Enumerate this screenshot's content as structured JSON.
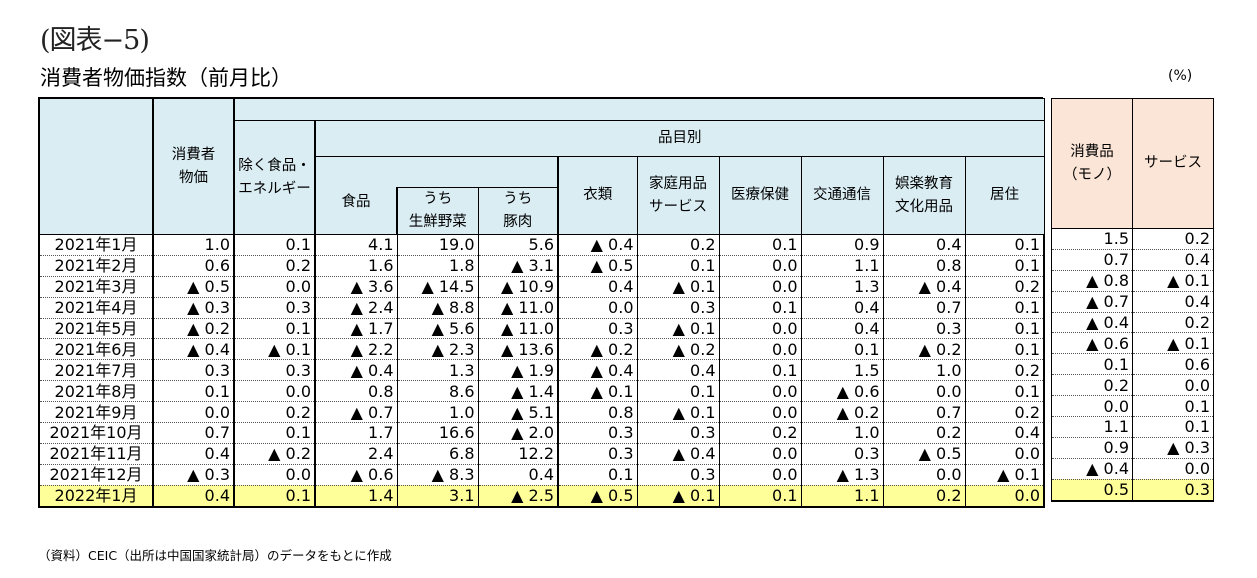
{
  "figure_label": "(図表−5)",
  "title": "消費者物価指数（前月比）",
  "unit": "(%)",
  "headers": {
    "group_label": "品目別",
    "cpi": [
      "消費者",
      "物価"
    ],
    "core": [
      "除く食品・",
      "エネルギー"
    ],
    "food": "食品",
    "vegetables": [
      "うち",
      "生鮮野菜"
    ],
    "pork": [
      "うち",
      "豚肉"
    ],
    "clothing": "衣類",
    "household": [
      "家庭用品",
      "サービス"
    ],
    "medical": "医療保健",
    "transport": "交通通信",
    "recreation": [
      "娯楽教育",
      "文化用品"
    ],
    "housing": "居住",
    "goods": [
      "消費品",
      "（モノ）"
    ],
    "services": "サービス"
  },
  "rows": [
    {
      "month": "2021年1月",
      "v": [
        "1.0",
        "0.1",
        "4.1",
        "19.0",
        "5.6",
        "▲ 0.4",
        "0.2",
        "0.1",
        "0.9",
        "0.4",
        "0.1"
      ],
      "r": [
        "1.5",
        "0.2"
      ]
    },
    {
      "month": "2021年2月",
      "v": [
        "0.6",
        "0.2",
        "1.6",
        "1.8",
        "▲ 3.1",
        "▲ 0.5",
        "0.1",
        "0.0",
        "1.1",
        "0.8",
        "0.1"
      ],
      "r": [
        "0.7",
        "0.4"
      ]
    },
    {
      "month": "2021年3月",
      "v": [
        "▲ 0.5",
        "0.0",
        "▲ 3.6",
        "▲ 14.5",
        "▲ 10.9",
        "0.4",
        "▲ 0.1",
        "0.0",
        "1.3",
        "▲ 0.4",
        "0.2"
      ],
      "r": [
        "▲ 0.8",
        "▲ 0.1"
      ]
    },
    {
      "month": "2021年4月",
      "v": [
        "▲ 0.3",
        "0.3",
        "▲ 2.4",
        "▲ 8.8",
        "▲ 11.0",
        "0.0",
        "0.3",
        "0.1",
        "0.4",
        "0.7",
        "0.1"
      ],
      "r": [
        "▲ 0.7",
        "0.4"
      ]
    },
    {
      "month": "2021年5月",
      "v": [
        "▲ 0.2",
        "0.1",
        "▲ 1.7",
        "▲ 5.6",
        "▲ 11.0",
        "0.3",
        "▲ 0.1",
        "0.0",
        "0.4",
        "0.3",
        "0.1"
      ],
      "r": [
        "▲ 0.4",
        "0.2"
      ]
    },
    {
      "month": "2021年6月",
      "v": [
        "▲ 0.4",
        "▲ 0.1",
        "▲ 2.2",
        "▲ 2.3",
        "▲ 13.6",
        "▲ 0.2",
        "▲ 0.2",
        "0.0",
        "0.1",
        "▲ 0.2",
        "0.1"
      ],
      "r": [
        "▲ 0.6",
        "▲ 0.1"
      ]
    },
    {
      "month": "2021年7月",
      "v": [
        "0.3",
        "0.3",
        "▲ 0.4",
        "1.3",
        "▲ 1.9",
        "▲ 0.4",
        "0.4",
        "0.1",
        "1.5",
        "1.0",
        "0.2"
      ],
      "r": [
        "0.1",
        "0.6"
      ]
    },
    {
      "month": "2021年8月",
      "v": [
        "0.1",
        "0.0",
        "0.8",
        "8.6",
        "▲ 1.4",
        "▲ 0.1",
        "0.1",
        "0.0",
        "▲ 0.6",
        "0.0",
        "0.1"
      ],
      "r": [
        "0.2",
        "0.0"
      ]
    },
    {
      "month": "2021年9月",
      "v": [
        "0.0",
        "0.2",
        "▲ 0.7",
        "1.0",
        "▲ 5.1",
        "0.8",
        "▲ 0.1",
        "0.0",
        "▲ 0.2",
        "0.7",
        "0.2"
      ],
      "r": [
        "0.0",
        "0.1"
      ]
    },
    {
      "month": "2021年10月",
      "v": [
        "0.7",
        "0.1",
        "1.7",
        "16.6",
        "▲ 2.0",
        "0.3",
        "0.3",
        "0.2",
        "1.0",
        "0.2",
        "0.4"
      ],
      "r": [
        "1.1",
        "0.1"
      ]
    },
    {
      "month": "2021年11月",
      "v": [
        "0.4",
        "▲ 0.2",
        "2.4",
        "6.8",
        "12.2",
        "0.3",
        "▲ 0.4",
        "0.0",
        "0.3",
        "▲ 0.5",
        "0.0"
      ],
      "r": [
        "0.9",
        "▲ 0.3"
      ]
    },
    {
      "month": "2021年12月",
      "v": [
        "▲ 0.3",
        "0.0",
        "▲ 0.6",
        "▲ 8.3",
        "0.4",
        "0.1",
        "0.3",
        "0.0",
        "▲ 1.3",
        "0.0",
        "▲ 0.1"
      ],
      "r": [
        "▲ 0.4",
        "0.0"
      ]
    },
    {
      "month": "2022年1月",
      "v": [
        "0.4",
        "0.1",
        "1.4",
        "3.1",
        "▲ 2.5",
        "▲ 0.5",
        "▲ 0.1",
        "0.1",
        "1.1",
        "0.2",
        "0.0"
      ],
      "r": [
        "0.5",
        "0.3"
      ],
      "highlight": true
    }
  ],
  "source_note": "（資料）CEIC（出所は中国国家統計局）のデータをもとに作成",
  "colors": {
    "header_blue": "#daedf3",
    "header_peach": "#fbe5d6",
    "highlight_yellow": "#ffff99"
  }
}
